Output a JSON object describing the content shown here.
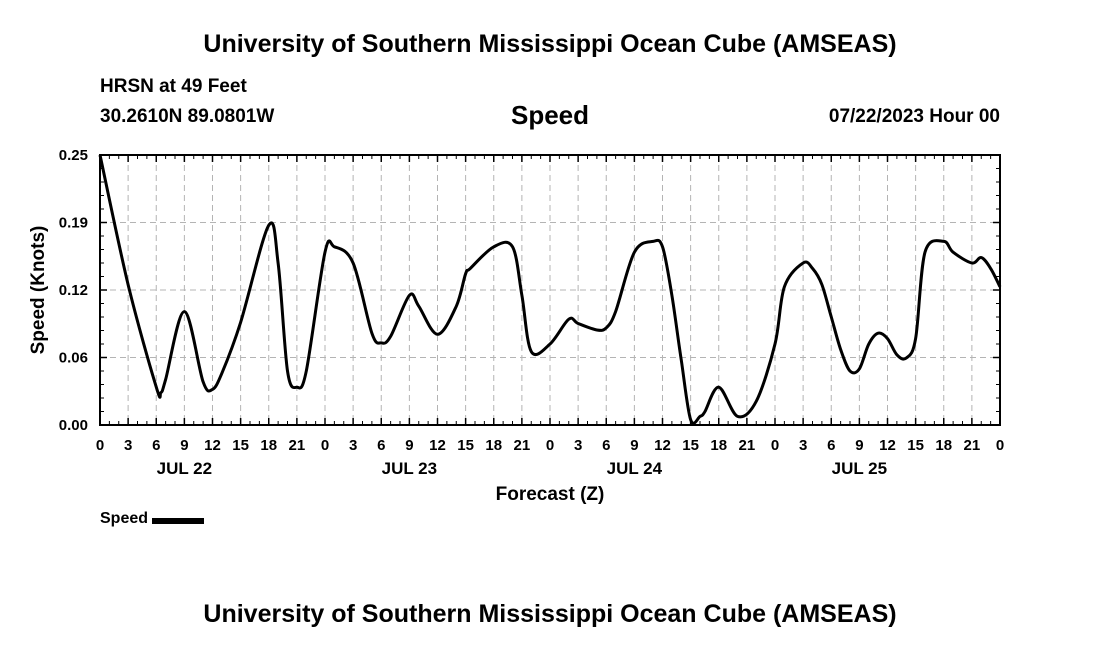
{
  "header": {
    "title": "University of Southern Mississippi Ocean Cube (AMSEAS)",
    "station": "HRSN at 49 Feet",
    "coordinates": "30.2610N  89.0801W",
    "chart_title": "Speed",
    "datetime": "07/22/2023 Hour 00"
  },
  "footer": {
    "title": "University of Southern Mississippi Ocean Cube (AMSEAS)"
  },
  "legend": {
    "label": "Speed"
  },
  "colors": {
    "line": "#000000",
    "grid": "#b4b4b4"
  },
  "chart_data": {
    "type": "line",
    "title": "Speed",
    "xlabel": "Forecast (Z)",
    "ylabel": "Speed (Knots)",
    "xlim": [
      0,
      96
    ],
    "ylim": [
      0.0,
      0.25
    ],
    "grid": true,
    "x_tick_values": [
      0,
      3,
      6,
      9,
      12,
      15,
      18,
      21,
      24,
      27,
      30,
      33,
      36,
      39,
      42,
      45,
      48,
      51,
      54,
      57,
      60,
      63,
      66,
      69,
      72,
      75,
      78,
      81,
      84,
      87,
      90,
      93,
      96
    ],
    "x_tick_labels": [
      "0",
      "3",
      "6",
      "9",
      "12",
      "15",
      "18",
      "21",
      "0",
      "3",
      "6",
      "9",
      "12",
      "15",
      "18",
      "21",
      "0",
      "3",
      "6",
      "9",
      "12",
      "15",
      "18",
      "21",
      "0",
      "3",
      "6",
      "9",
      "12",
      "15",
      "18",
      "21",
      "0"
    ],
    "y_tick_values": [
      0.0,
      0.0625,
      0.125,
      0.1875,
      0.25
    ],
    "y_tick_labels": [
      "0.00",
      "0.06",
      "0.12",
      "0.19",
      "0.25"
    ],
    "date_labels": [
      {
        "x": 9,
        "label": "JUL 22"
      },
      {
        "x": 33,
        "label": "JUL 23"
      },
      {
        "x": 57,
        "label": "JUL 24"
      },
      {
        "x": 81,
        "label": "JUL 25"
      }
    ],
    "series": [
      {
        "name": "Speed",
        "x": [
          0,
          3,
          6,
          6.5,
          7,
          9,
          11,
          12,
          13,
          15,
          18,
          19,
          20,
          21,
          22,
          24,
          25,
          27,
          29,
          30,
          31,
          33,
          34,
          36,
          38,
          39,
          39.5,
          42,
          44,
          45,
          46,
          48,
          50,
          51,
          53,
          54,
          55,
          57,
          59,
          60,
          61,
          62,
          63,
          64,
          64.5,
          66,
          68,
          70,
          72,
          73,
          75,
          76,
          77,
          78,
          79,
          80,
          81,
          82,
          83,
          84,
          85,
          86,
          87,
          88,
          90,
          91,
          93,
          94,
          95,
          96
        ],
        "y": [
          0.25,
          0.13,
          0.035,
          0.03,
          0.042,
          0.105,
          0.04,
          0.033,
          0.048,
          0.095,
          0.185,
          0.15,
          0.05,
          0.035,
          0.05,
          0.16,
          0.165,
          0.15,
          0.085,
          0.076,
          0.082,
          0.12,
          0.11,
          0.084,
          0.11,
          0.14,
          0.145,
          0.165,
          0.165,
          0.12,
          0.068,
          0.075,
          0.098,
          0.094,
          0.088,
          0.09,
          0.105,
          0.16,
          0.17,
          0.165,
          0.12,
          0.06,
          0.005,
          0.008,
          0.012,
          0.035,
          0.008,
          0.022,
          0.075,
          0.128,
          0.15,
          0.145,
          0.13,
          0.1,
          0.07,
          0.05,
          0.052,
          0.075,
          0.085,
          0.08,
          0.065,
          0.062,
          0.08,
          0.16,
          0.17,
          0.16,
          0.15,
          0.155,
          0.145,
          0.128
        ]
      }
    ]
  }
}
